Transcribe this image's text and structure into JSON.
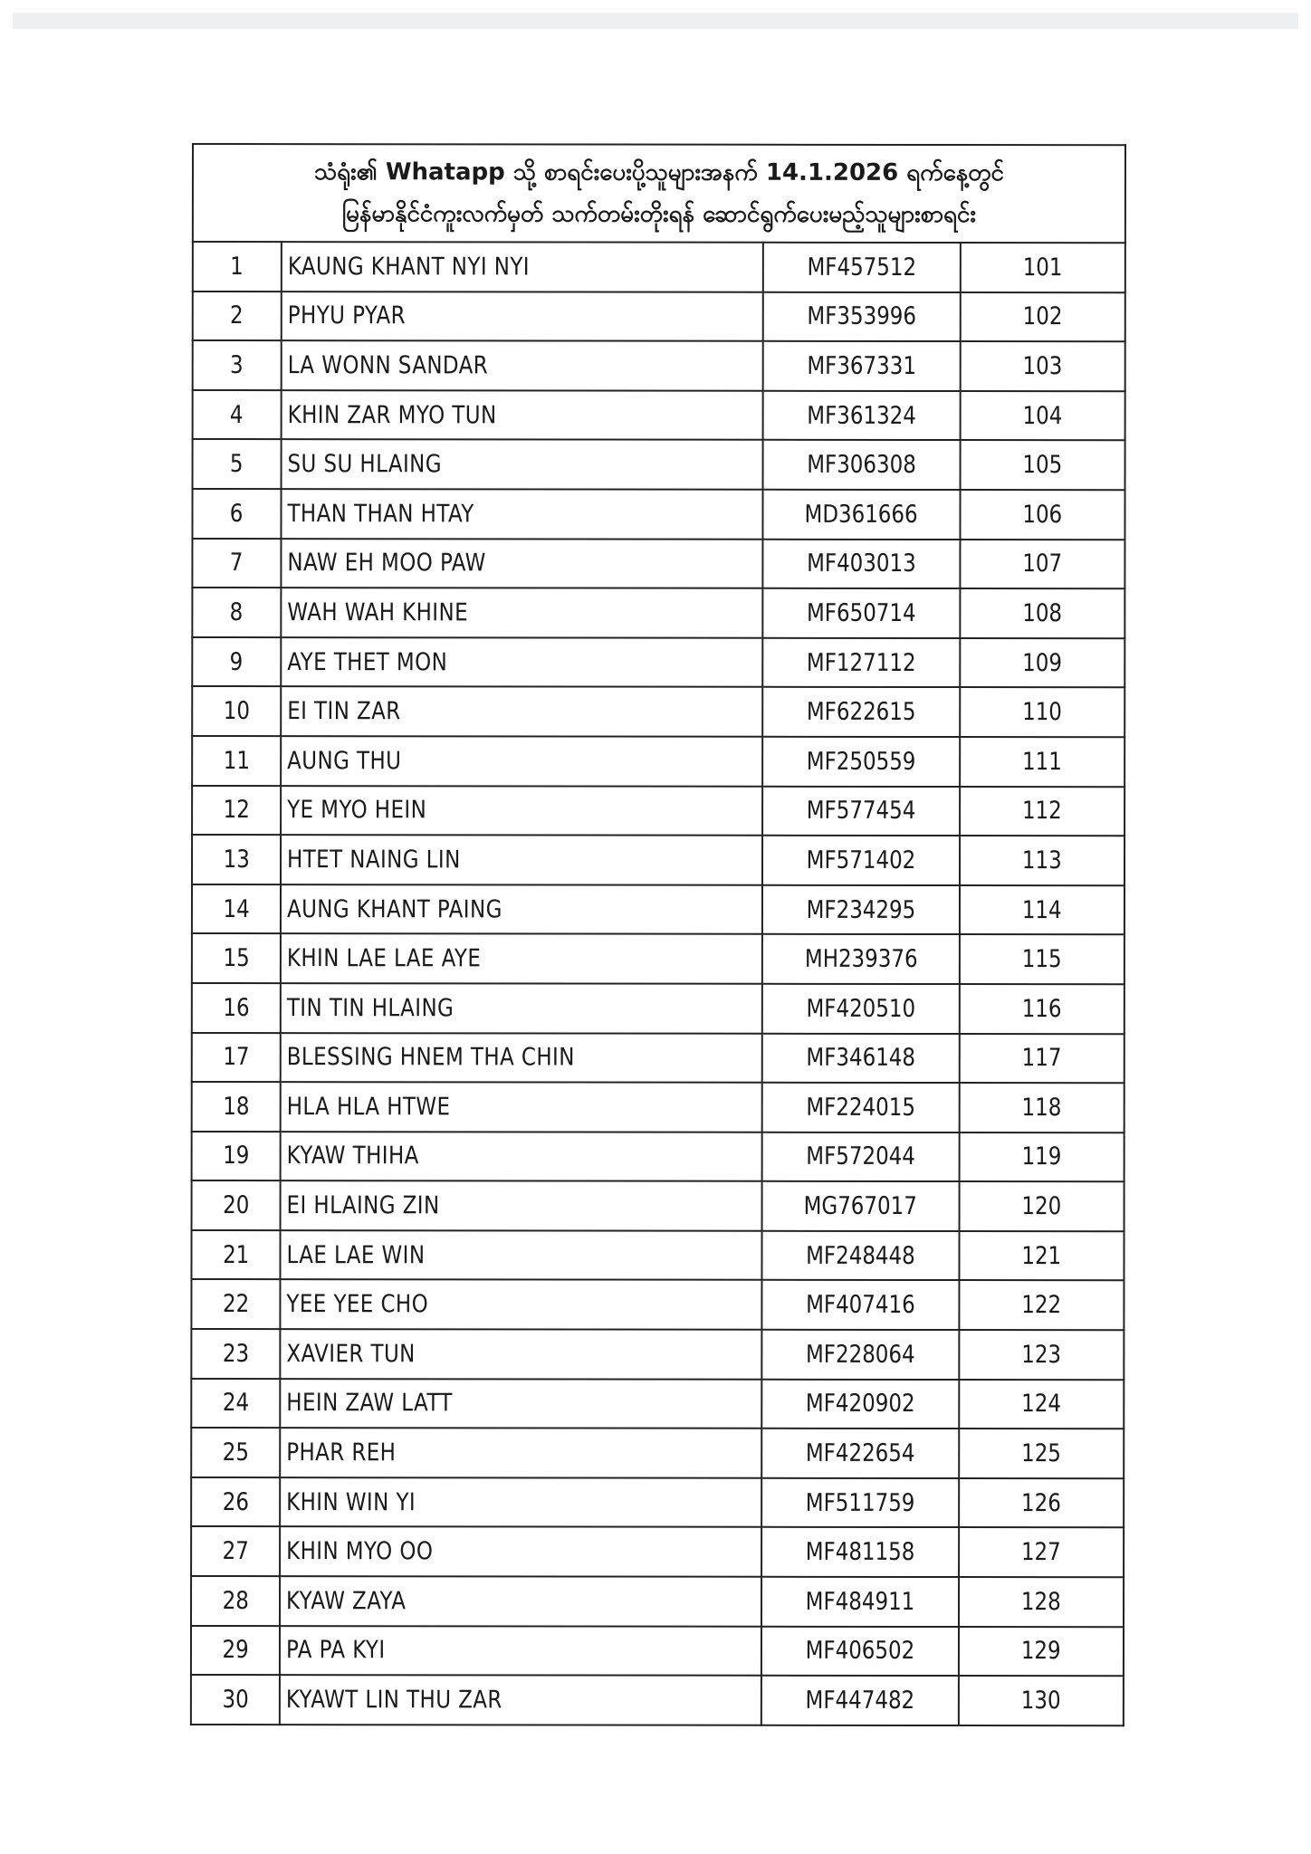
{
  "document": {
    "title_line1": "သံရုံး၏ Whatapp သို့ စာရင်းပေးပို့သူများအနက် 14.1.2026 ရက်နေ့တွင်",
    "title_line2": "မြန်မာနိုင်ငံကူးလက်မှတ် သက်တမ်းတိုးရန် ဆောင်ရွက်ပေးမည့်သူများစာရင်း",
    "rows": [
      {
        "no": "1",
        "name": "KAUNG KHANT NYI NYI",
        "passport": "MF457512",
        "seq": "101"
      },
      {
        "no": "2",
        "name": "PHYU PYAR",
        "passport": "MF353996",
        "seq": "102"
      },
      {
        "no": "3",
        "name": "LA WONN SANDAR",
        "passport": "MF367331",
        "seq": "103"
      },
      {
        "no": "4",
        "name": "KHIN ZAR MYO TUN",
        "passport": "MF361324",
        "seq": "104"
      },
      {
        "no": "5",
        "name": "SU SU HLAING",
        "passport": "MF306308",
        "seq": "105"
      },
      {
        "no": "6",
        "name": "THAN THAN HTAY",
        "passport": "MD361666",
        "seq": "106"
      },
      {
        "no": "7",
        "name": "NAW EH MOO PAW",
        "passport": "MF403013",
        "seq": "107"
      },
      {
        "no": "8",
        "name": "WAH WAH KHINE",
        "passport": "MF650714",
        "seq": "108"
      },
      {
        "no": "9",
        "name": "AYE THET MON",
        "passport": "MF127112",
        "seq": "109"
      },
      {
        "no": "10",
        "name": "EI TIN ZAR",
        "passport": "MF622615",
        "seq": "110"
      },
      {
        "no": "11",
        "name": "AUNG THU",
        "passport": "MF250559",
        "seq": "111"
      },
      {
        "no": "12",
        "name": "YE MYO HEIN",
        "passport": "MF577454",
        "seq": "112"
      },
      {
        "no": "13",
        "name": "HTET NAING LIN",
        "passport": "MF571402",
        "seq": "113"
      },
      {
        "no": "14",
        "name": "AUNG KHANT PAING",
        "passport": "MF234295",
        "seq": "114"
      },
      {
        "no": "15",
        "name": "KHIN LAE LAE AYE",
        "passport": "MH239376",
        "seq": "115"
      },
      {
        "no": "16",
        "name": "TIN TIN HLAING",
        "passport": "MF420510",
        "seq": "116"
      },
      {
        "no": "17",
        "name": "BLESSING HNEM THA CHIN",
        "passport": "MF346148",
        "seq": "117"
      },
      {
        "no": "18",
        "name": "HLA HLA HTWE",
        "passport": "MF224015",
        "seq": "118"
      },
      {
        "no": "19",
        "name": "KYAW THIHA",
        "passport": "MF572044",
        "seq": "119"
      },
      {
        "no": "20",
        "name": "EI HLAING ZIN",
        "passport": "MG767017",
        "seq": "120"
      },
      {
        "no": "21",
        "name": "LAE LAE WIN",
        "passport": "MF248448",
        "seq": "121"
      },
      {
        "no": "22",
        "name": "YEE YEE CHO",
        "passport": "MF407416",
        "seq": "122"
      },
      {
        "no": "23",
        "name": "XAVIER TUN",
        "passport": "MF228064",
        "seq": "123"
      },
      {
        "no": "24",
        "name": "HEIN ZAW LATT",
        "passport": "MF420902",
        "seq": "124"
      },
      {
        "no": "25",
        "name": "PHAR REH",
        "passport": "MF422654",
        "seq": "125"
      },
      {
        "no": "26",
        "name": "KHIN WIN YI",
        "passport": "MF511759",
        "seq": "126"
      },
      {
        "no": "27",
        "name": "KHIN MYO OO",
        "passport": "MF481158",
        "seq": "127"
      },
      {
        "no": "28",
        "name": "KYAW ZAYA",
        "passport": "MF484911",
        "seq": "128"
      },
      {
        "no": "29",
        "name": "PA PA KYI",
        "passport": "MF406502",
        "seq": "129"
      },
      {
        "no": "30",
        "name": "KYAWT LIN THU ZAR",
        "passport": "MF447482",
        "seq": "130"
      }
    ]
  }
}
